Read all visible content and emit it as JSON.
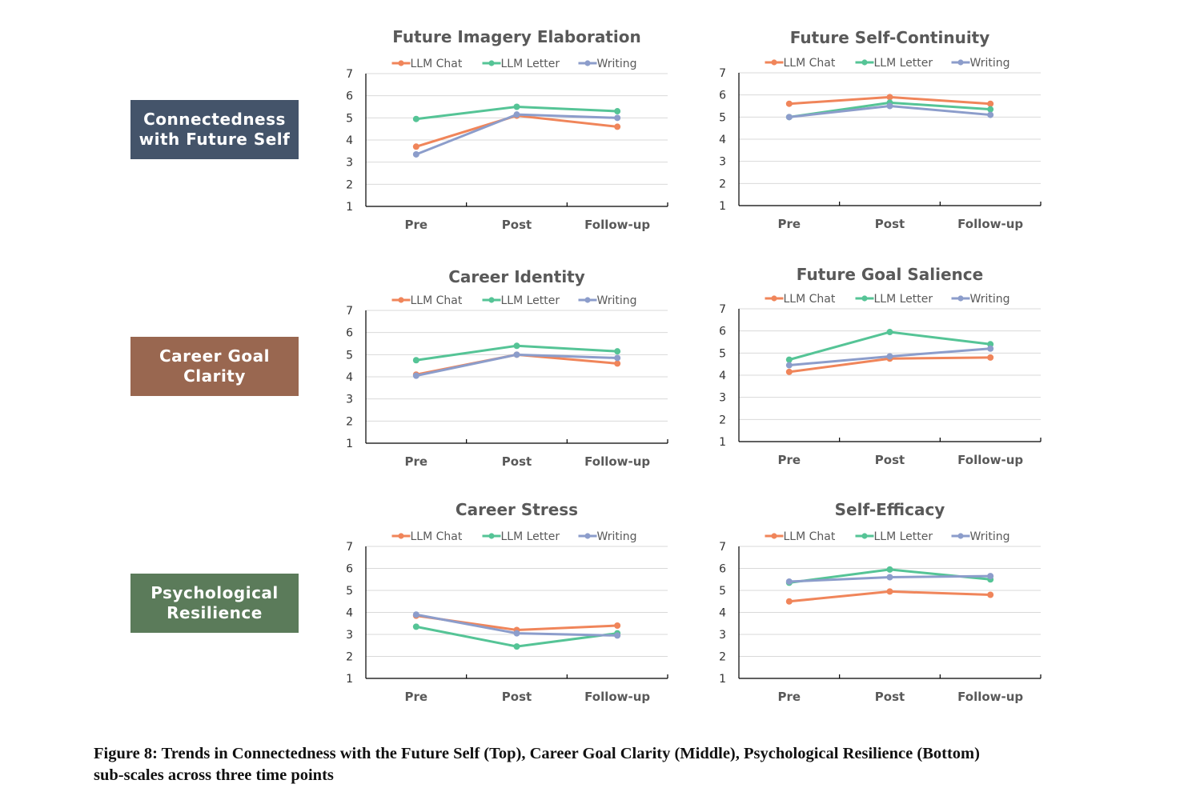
{
  "colors": {
    "llm_chat": "#F0855A",
    "llm_letter": "#55C496",
    "writing": "#8C9DCB",
    "row_connectedness": "#44546A",
    "row_career_goal": "#996750",
    "row_resilience": "#5B7B5A"
  },
  "row_labels": [
    {
      "line1": "Connectedness",
      "line2": "with Future Self"
    },
    {
      "line1": "Career Goal",
      "line2": "Clarity"
    },
    {
      "line1": "Psychological",
      "line2": "Resilience"
    }
  ],
  "caption": {
    "line1": "Figure 8: Trends in Connectedness with the Future Self (Top), Career Goal Clarity (Middle), Psychological Resilience (Bottom)",
    "line2": "sub-scales across three time points"
  },
  "chart_data": [
    {
      "type": "line",
      "title": "Future Imagery Elaboration",
      "categories": [
        "Pre",
        "Post",
        "Follow-up"
      ],
      "ylim": [
        1,
        7
      ],
      "yticks": [
        1,
        2,
        3,
        4,
        5,
        6,
        7
      ],
      "legend": "top",
      "series": [
        {
          "name": "LLM Chat",
          "values": [
            3.7,
            5.1,
            4.6
          ]
        },
        {
          "name": "LLM Letter",
          "values": [
            4.95,
            5.5,
            5.3
          ]
        },
        {
          "name": "Writing",
          "values": [
            3.35,
            5.15,
            5.0
          ]
        }
      ]
    },
    {
      "type": "line",
      "title": "Future Self-Continuity",
      "categories": [
        "Pre",
        "Post",
        "Follow-up"
      ],
      "ylim": [
        1,
        7
      ],
      "yticks": [
        1,
        2,
        3,
        4,
        5,
        6,
        7
      ],
      "legend": "top",
      "series": [
        {
          "name": "LLM Chat",
          "values": [
            5.6,
            5.9,
            5.6
          ]
        },
        {
          "name": "LLM Letter",
          "values": [
            5.0,
            5.65,
            5.35
          ]
        },
        {
          "name": "Writing",
          "values": [
            5.0,
            5.5,
            5.1
          ]
        }
      ]
    },
    {
      "type": "line",
      "title": "Career Identity",
      "categories": [
        "Pre",
        "Post",
        "Follow-up"
      ],
      "ylim": [
        1,
        7
      ],
      "yticks": [
        1,
        2,
        3,
        4,
        5,
        6,
        7
      ],
      "legend": "top",
      "series": [
        {
          "name": "LLM Chat",
          "values": [
            4.1,
            5.0,
            4.6
          ]
        },
        {
          "name": "LLM Letter",
          "values": [
            4.75,
            5.4,
            5.15
          ]
        },
        {
          "name": "Writing",
          "values": [
            4.05,
            5.0,
            4.85
          ]
        }
      ]
    },
    {
      "type": "line",
      "title": "Future Goal Salience",
      "categories": [
        "Pre",
        "Post",
        "Follow-up"
      ],
      "ylim": [
        1,
        7
      ],
      "yticks": [
        1,
        2,
        3,
        4,
        5,
        6,
        7
      ],
      "legend": "top",
      "series": [
        {
          "name": "LLM Chat",
          "values": [
            4.15,
            4.75,
            4.8
          ]
        },
        {
          "name": "LLM Letter",
          "values": [
            4.7,
            5.95,
            5.4
          ]
        },
        {
          "name": "Writing",
          "values": [
            4.45,
            4.85,
            5.2
          ]
        }
      ]
    },
    {
      "type": "line",
      "title": "Career Stress",
      "categories": [
        "Pre",
        "Post",
        "Follow-up"
      ],
      "ylim": [
        1,
        7
      ],
      "yticks": [
        1,
        2,
        3,
        4,
        5,
        6,
        7
      ],
      "legend": "top",
      "series": [
        {
          "name": "LLM Chat",
          "values": [
            3.85,
            3.2,
            3.4
          ]
        },
        {
          "name": "LLM Letter",
          "values": [
            3.35,
            2.45,
            3.05
          ]
        },
        {
          "name": "Writing",
          "values": [
            3.9,
            3.05,
            2.95
          ]
        }
      ]
    },
    {
      "type": "line",
      "title": "Self-Efficacy",
      "categories": [
        "Pre",
        "Post",
        "Follow-up"
      ],
      "ylim": [
        1,
        7
      ],
      "yticks": [
        1,
        2,
        3,
        4,
        5,
        6,
        7
      ],
      "legend": "top",
      "series": [
        {
          "name": "LLM Chat",
          "values": [
            4.5,
            4.95,
            4.8
          ]
        },
        {
          "name": "LLM Letter",
          "values": [
            5.35,
            5.95,
            5.5
          ]
        },
        {
          "name": "Writing",
          "values": [
            5.4,
            5.6,
            5.65
          ]
        }
      ]
    }
  ]
}
